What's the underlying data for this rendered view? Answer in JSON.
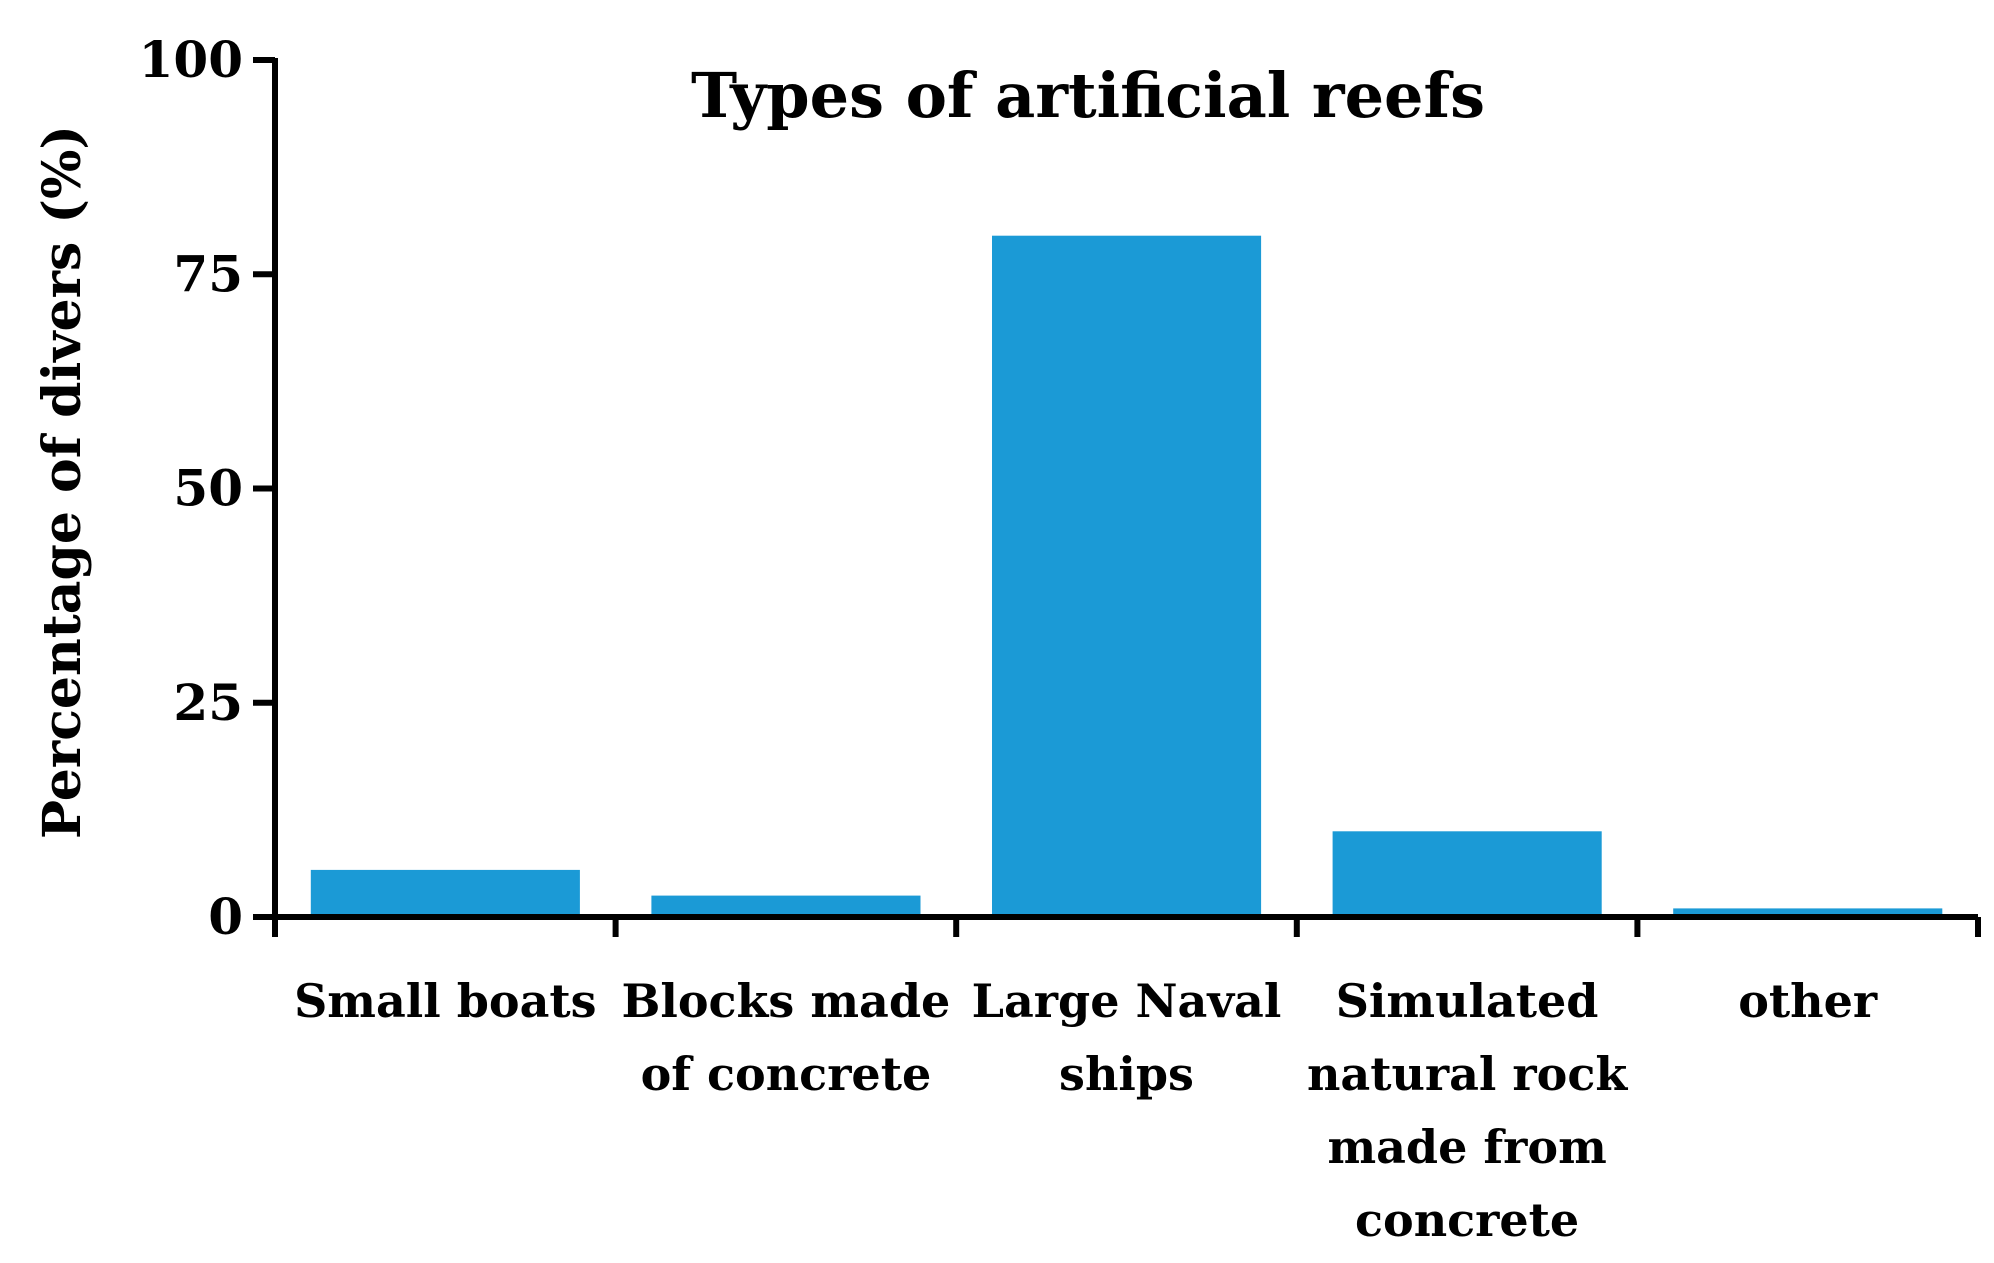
{
  "chart_data": {
    "type": "bar",
    "title": "Types of artificial reefs",
    "xlabel": "",
    "ylabel": "Percentage of divers (%)",
    "ylim": [
      0,
      100
    ],
    "yticks": [
      "0",
      "25",
      "50",
      "75",
      "100"
    ],
    "ytick_values": [
      0,
      25,
      50,
      75,
      100
    ],
    "categories": [
      [
        "Small boats"
      ],
      [
        "Blocks made",
        "of concrete"
      ],
      [
        "Large Naval",
        "ships"
      ],
      [
        "Simulated",
        "natural rock",
        "made from",
        "concrete"
      ],
      [
        "other"
      ]
    ],
    "values": [
      5.5,
      2.5,
      79.5,
      10,
      1
    ],
    "grid": false,
    "legend": "none",
    "colors": {
      "bar": "#1b9ad6",
      "axis": "#000000"
    }
  }
}
